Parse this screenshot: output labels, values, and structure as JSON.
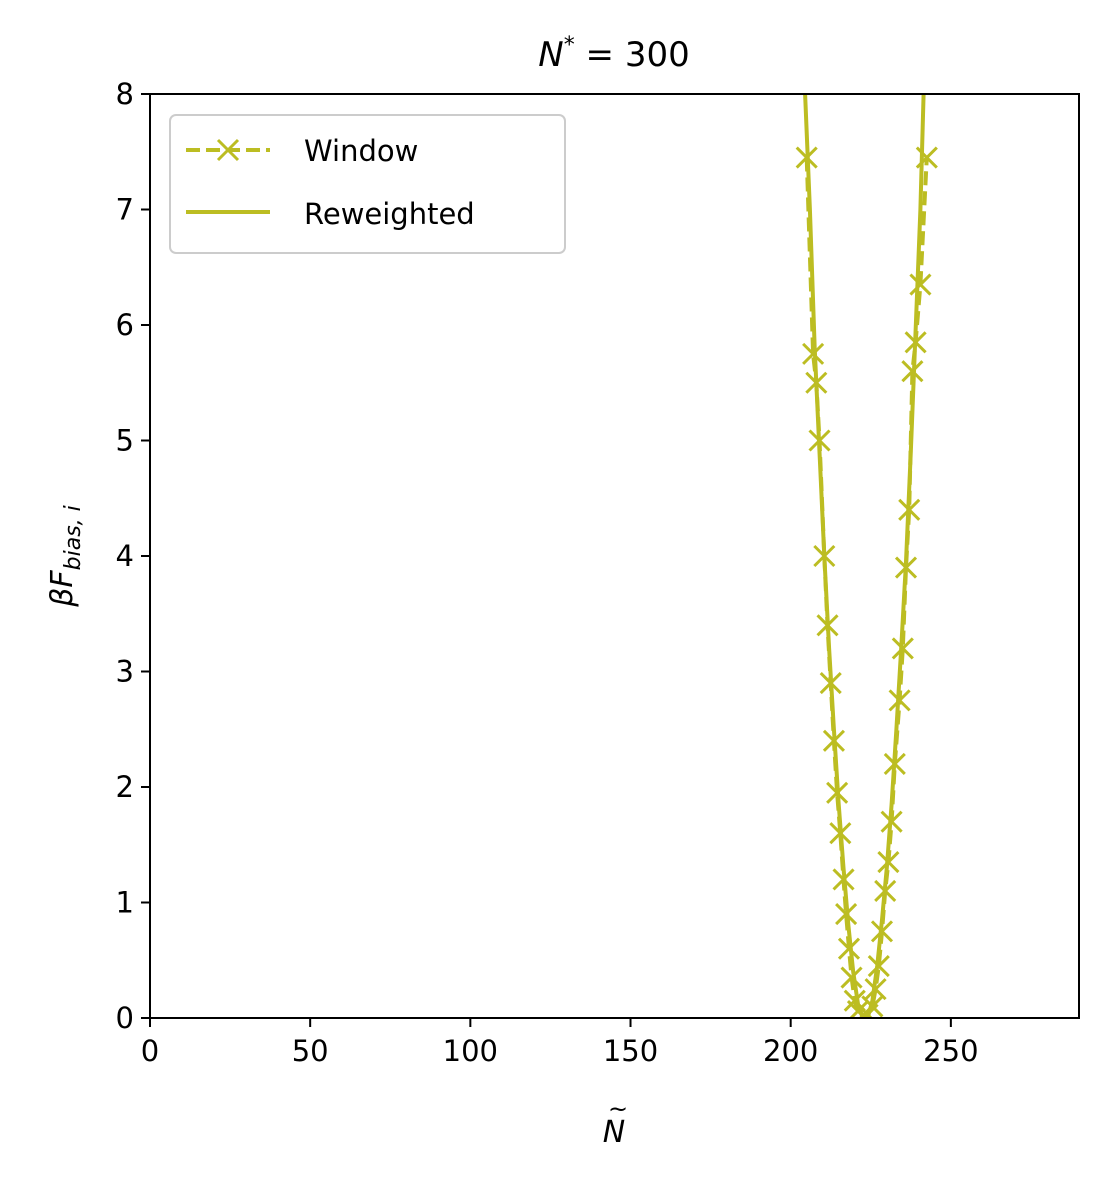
{
  "chart_data": {
    "type": "line",
    "title": "N* = 300",
    "xlabel": "Ñ",
    "ylabel": "βF_bias,i",
    "xlim": [
      0,
      290
    ],
    "ylim": [
      0,
      8
    ],
    "xticks": [
      0,
      50,
      100,
      150,
      200,
      250
    ],
    "yticks": [
      0,
      1,
      2,
      3,
      4,
      5,
      6,
      7,
      8
    ],
    "grid": false,
    "legend_position": "top-left",
    "color": "#bcbd22",
    "series": [
      {
        "name": "Window",
        "style": "dashed",
        "marker": "x",
        "points": [
          [
            205,
            7.45
          ],
          [
            207,
            5.75
          ],
          [
            208,
            5.5
          ],
          [
            209,
            5.0
          ],
          [
            210.5,
            4.0
          ],
          [
            211.5,
            3.4
          ],
          [
            212.5,
            2.9
          ],
          [
            213.5,
            2.4
          ],
          [
            214.5,
            1.95
          ],
          [
            215.5,
            1.6
          ],
          [
            216.5,
            1.2
          ],
          [
            217.3,
            0.9
          ],
          [
            218.2,
            0.6
          ],
          [
            219,
            0.35
          ],
          [
            220,
            0.15
          ],
          [
            221,
            0.06
          ],
          [
            222.5,
            0.02
          ],
          [
            224,
            0.03
          ],
          [
            225.5,
            0.1
          ],
          [
            226.5,
            0.25
          ],
          [
            227.5,
            0.45
          ],
          [
            228.5,
            0.75
          ],
          [
            229.5,
            1.1
          ],
          [
            230.5,
            1.35
          ],
          [
            231.5,
            1.7
          ],
          [
            232.5,
            2.2
          ],
          [
            234,
            2.75
          ],
          [
            235,
            3.2
          ],
          [
            236,
            3.9
          ],
          [
            237,
            4.4
          ],
          [
            238,
            5.6
          ],
          [
            239,
            5.85
          ],
          [
            240.5,
            6.35
          ],
          [
            242.5,
            7.45
          ]
        ]
      },
      {
        "name": "Reweighted",
        "style": "solid",
        "points": [
          [
            204.5,
            8.0
          ],
          [
            206,
            7.0
          ],
          [
            207.5,
            5.8
          ],
          [
            209,
            4.9
          ],
          [
            210.5,
            4.0
          ],
          [
            212,
            3.2
          ],
          [
            213.5,
            2.5
          ],
          [
            215,
            1.85
          ],
          [
            216.5,
            1.3
          ],
          [
            218,
            0.8
          ],
          [
            219.5,
            0.4
          ],
          [
            221,
            0.12
          ],
          [
            222.5,
            0.0
          ],
          [
            224,
            0.0
          ],
          [
            225.5,
            0.15
          ],
          [
            227,
            0.45
          ],
          [
            228.5,
            0.85
          ],
          [
            230,
            1.3
          ],
          [
            231.5,
            1.85
          ],
          [
            233,
            2.5
          ],
          [
            234.5,
            3.2
          ],
          [
            236,
            3.95
          ],
          [
            237.5,
            4.9
          ],
          [
            238.5,
            5.6
          ],
          [
            239.5,
            6.3
          ],
          [
            240.5,
            7.0
          ],
          [
            241.5,
            8.0
          ]
        ]
      }
    ]
  }
}
